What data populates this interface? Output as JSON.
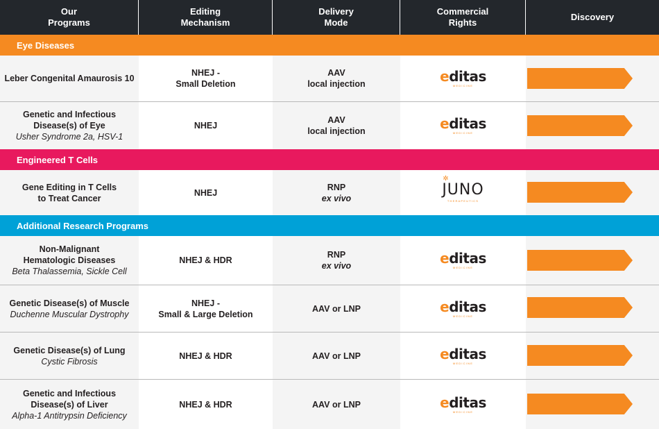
{
  "header": {
    "programs": "Our\nPrograms",
    "mechanism": "Editing\nMechanism",
    "delivery": "Delivery\nMode",
    "rights": "Commercial\nRights",
    "discovery": "Discovery"
  },
  "sections": {
    "eye": "Eye Diseases",
    "tcell": "Engineered T Cells",
    "research": "Additional Research Programs"
  },
  "logos": {
    "editas": "editas",
    "editas_sub": "MEDICINE",
    "juno": "JUNO",
    "juno_sub": "THERAPEUTICS",
    "juno_star": "✲"
  },
  "rows": [
    {
      "program": "Leber Congenital Amaurosis 10",
      "sub": "",
      "mechanism": "NHEJ -\nSmall Deletion",
      "delivery": "AAV\nlocal injection",
      "delivery_italic": "",
      "rights": "editas",
      "discovery_progress": 1.0
    },
    {
      "program": "Genetic and Infectious\nDisease(s) of Eye",
      "sub": "Usher Syndrome 2a, HSV-1",
      "mechanism": "NHEJ",
      "delivery": "AAV\nlocal injection",
      "delivery_italic": "",
      "rights": "editas",
      "discovery_progress": 1.0
    },
    {
      "program": "Gene Editing in T Cells\nto Treat Cancer",
      "sub": "",
      "mechanism": "NHEJ",
      "delivery": "RNP",
      "delivery_italic": "ex vivo",
      "rights": "juno",
      "discovery_progress": 1.0
    },
    {
      "program": "Non-Malignant\nHematologic Diseases",
      "sub": "Beta Thalassemia, Sickle Cell",
      "mechanism": "NHEJ & HDR",
      "delivery": "RNP",
      "delivery_italic": "ex vivo",
      "rights": "editas",
      "discovery_progress": 1.0
    },
    {
      "program": "Genetic Disease(s) of Muscle",
      "sub": "Duchenne Muscular Dystrophy",
      "mechanism": "NHEJ -\nSmall  & Large Deletion",
      "delivery": "AAV or LNP",
      "delivery_italic": "",
      "rights": "editas",
      "discovery_progress": 1.0
    },
    {
      "program": "Genetic Disease(s) of Lung",
      "sub": "Cystic Fibrosis",
      "mechanism": "NHEJ & HDR",
      "delivery": "AAV or LNP",
      "delivery_italic": "",
      "rights": "editas",
      "discovery_progress": 1.0
    },
    {
      "program": "Genetic and Infectious\nDisease(s) of Liver",
      "sub": "Alpha-1 Antitrypsin Deficiency",
      "mechanism": "NHEJ & HDR",
      "delivery": "AAV or LNP",
      "delivery_italic": "",
      "rights": "editas",
      "discovery_progress": 1.0
    }
  ]
}
